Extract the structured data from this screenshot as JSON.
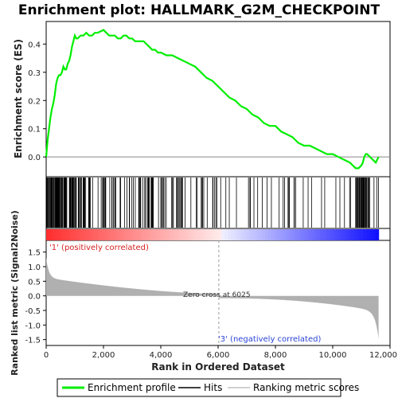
{
  "chart_data": {
    "type": "line",
    "title": "Enrichment plot: HALLMARK_G2M_CHECKPOINT",
    "xlabel": "Rank in Ordered Dataset",
    "ylabel_top": "Enrichment score (ES)",
    "ylabel_bottom": "Ranked list metric (Signal2Noise)",
    "xlim": [
      0,
      12000
    ],
    "ylim_top": [
      -0.07,
      0.48
    ],
    "ylim_bottom": [
      -1.7,
      1.9
    ],
    "x_ticks": [
      0,
      2000,
      4000,
      6000,
      8000,
      10000,
      12000
    ],
    "x_tick_labels": [
      "0",
      "2,000",
      "4,000",
      "6,000",
      "8,000",
      "10,000",
      "12,000"
    ],
    "y_ticks_top": [
      0.0,
      0.1,
      0.2,
      0.3,
      0.4
    ],
    "y_tick_labels_top": [
      "0.0",
      "0.1",
      "0.2",
      "0.3",
      "0.4"
    ],
    "y_ticks_bottom": [
      -1.5,
      -1.0,
      -0.5,
      0.0,
      0.5,
      1.0,
      1.5
    ],
    "y_tick_labels_bottom": [
      "-1.5",
      "-1.0",
      "-0.5",
      "0.0",
      "0.5",
      "1.0",
      "1.5"
    ],
    "annotations": {
      "positive": "'1' (positively correlated)",
      "negative": "'3' (negatively correlated)",
      "zero_cross": "Zero cross at 6025",
      "zero_cross_x": 6025
    },
    "legend": {
      "placement": "bottom",
      "items": [
        "Enrichment profile",
        "Hits",
        "Ranking metric scores"
      ]
    },
    "colors": {
      "enrichment": "#00ee00",
      "hits": "#000000",
      "metric": "#b0b0b0",
      "positive": "#ff0000",
      "negative": "#0000ff"
    },
    "n_genes": 11600,
    "series": [
      {
        "name": "Enrichment profile",
        "x": [
          0,
          50,
          100,
          150,
          200,
          250,
          300,
          350,
          400,
          450,
          500,
          550,
          600,
          650,
          700,
          750,
          800,
          850,
          900,
          950,
          1000,
          1050,
          1100,
          1200,
          1300,
          1400,
          1500,
          1600,
          1700,
          1800,
          1900,
          2000,
          2100,
          2200,
          2300,
          2400,
          2500,
          2600,
          2700,
          2800,
          2900,
          3000,
          3100,
          3200,
          3300,
          3400,
          3500,
          3600,
          3700,
          3800,
          3900,
          4000,
          4200,
          4400,
          4600,
          4800,
          5000,
          5200,
          5400,
          5600,
          5800,
          6000,
          6200,
          6400,
          6600,
          6800,
          7000,
          7200,
          7400,
          7600,
          7800,
          8000,
          8200,
          8400,
          8600,
          8800,
          9000,
          9100,
          9200,
          9400,
          9600,
          9800,
          10000,
          10200,
          10400,
          10600,
          10700,
          10800,
          10900,
          11000,
          11050,
          11100,
          11150,
          11200,
          11300,
          11400,
          11500,
          11600
        ],
        "y": [
          0.0,
          0.06,
          0.1,
          0.14,
          0.17,
          0.19,
          0.22,
          0.26,
          0.28,
          0.29,
          0.29,
          0.3,
          0.32,
          0.31,
          0.31,
          0.33,
          0.34,
          0.36,
          0.39,
          0.41,
          0.43,
          0.42,
          0.42,
          0.43,
          0.43,
          0.44,
          0.43,
          0.43,
          0.44,
          0.44,
          0.445,
          0.45,
          0.44,
          0.43,
          0.43,
          0.43,
          0.42,
          0.42,
          0.43,
          0.43,
          0.42,
          0.42,
          0.41,
          0.41,
          0.41,
          0.41,
          0.4,
          0.39,
          0.38,
          0.38,
          0.37,
          0.37,
          0.36,
          0.36,
          0.35,
          0.34,
          0.33,
          0.32,
          0.3,
          0.28,
          0.27,
          0.25,
          0.23,
          0.21,
          0.2,
          0.18,
          0.17,
          0.15,
          0.14,
          0.12,
          0.11,
          0.11,
          0.09,
          0.08,
          0.07,
          0.05,
          0.04,
          0.04,
          0.04,
          0.03,
          0.02,
          0.01,
          0.01,
          0.0,
          -0.01,
          -0.02,
          -0.03,
          -0.04,
          -0.04,
          -0.03,
          -0.02,
          0.0,
          0.01,
          0.01,
          0.0,
          -0.01,
          -0.02,
          0.0
        ]
      }
    ]
  }
}
